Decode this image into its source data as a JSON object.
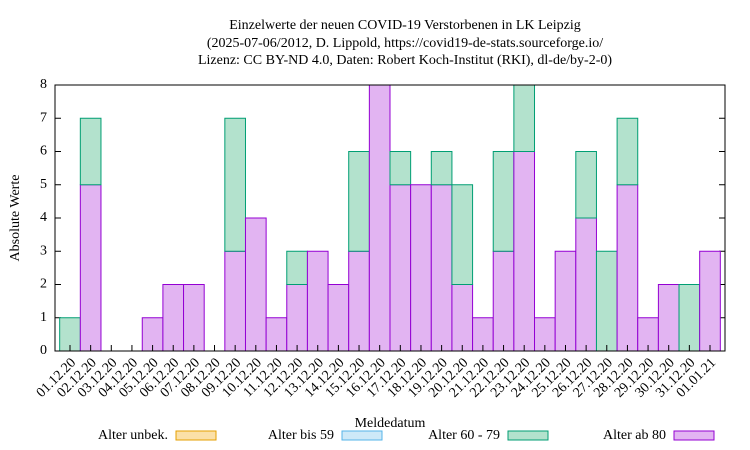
{
  "chart_data": {
    "type": "bar",
    "stacked": true,
    "title": [
      "Einzelwerte der neuen COVID-19 Verstorbenen in LK Leipzig",
      "(2025-07-06/2012, D. Lippold, https://covid19-de-stats.sourceforge.io/",
      "Lizenz: CC BY-ND 4.0, Daten: Robert Koch-Institut (RKI), dl-de/by-2-0)"
    ],
    "x_label": "Meldedatum",
    "y_label": "Absolute Werte",
    "categories": [
      "01.12.20",
      "02.12.20",
      "03.12.20",
      "04.12.20",
      "05.12.20",
      "06.12.20",
      "07.12.20",
      "08.12.20",
      "09.12.20",
      "10.12.20",
      "11.12.20",
      "12.12.20",
      "13.12.20",
      "14.12.20",
      "15.12.20",
      "16.12.20",
      "17.12.20",
      "18.12.20",
      "19.12.20",
      "20.12.20",
      "21.12.20",
      "22.12.20",
      "23.12.20",
      "24.12.20",
      "25.12.20",
      "26.12.20",
      "27.12.20",
      "28.12.20",
      "29.12.20",
      "30.12.20",
      "31.12.20",
      "01.01.21"
    ],
    "series": [
      {
        "name": "Alter unbek.",
        "color": "#fbe0a8",
        "edge": "#e69f00",
        "values": [
          0,
          0,
          0,
          0,
          0,
          0,
          0,
          0,
          0,
          0,
          0,
          0,
          0,
          0,
          0,
          0,
          0,
          0,
          0,
          0,
          0,
          0,
          0,
          0,
          0,
          0,
          0,
          0,
          0,
          0,
          0,
          0
        ]
      },
      {
        "name": "Alter bis 59",
        "color": "#cde9f8",
        "edge": "#56b4e9",
        "values": [
          0,
          0,
          0,
          0,
          0,
          0,
          0,
          0,
          0,
          0,
          0,
          0,
          0,
          0,
          0,
          0,
          0,
          0,
          0,
          0,
          0,
          0,
          0,
          0,
          0,
          0,
          0,
          0,
          0,
          0,
          0,
          0
        ]
      },
      {
        "name": "Alter 60 - 79",
        "color": "#b3e2cd",
        "edge": "#009e73",
        "values": [
          1,
          2,
          0,
          0,
          0,
          0,
          0,
          0,
          4,
          0,
          0,
          1,
          0,
          0,
          3,
          0,
          1,
          0,
          1,
          3,
          0,
          3,
          2,
          0,
          0,
          2,
          3,
          2,
          0,
          0,
          2,
          0
        ]
      },
      {
        "name": "Alter ab 80",
        "color": "#e2b4f2",
        "edge": "#9400d3",
        "values": [
          0,
          5,
          0,
          0,
          1,
          2,
          2,
          0,
          3,
          4,
          1,
          2,
          3,
          2,
          3,
          8,
          5,
          5,
          5,
          2,
          1,
          3,
          6,
          1,
          3,
          4,
          0,
          5,
          1,
          2,
          0,
          3
        ]
      }
    ],
    "ylim": [
      0,
      8
    ],
    "yticks": [
      0,
      1,
      2,
      3,
      4,
      5,
      6,
      7,
      8
    ],
    "legend": "bottom"
  }
}
